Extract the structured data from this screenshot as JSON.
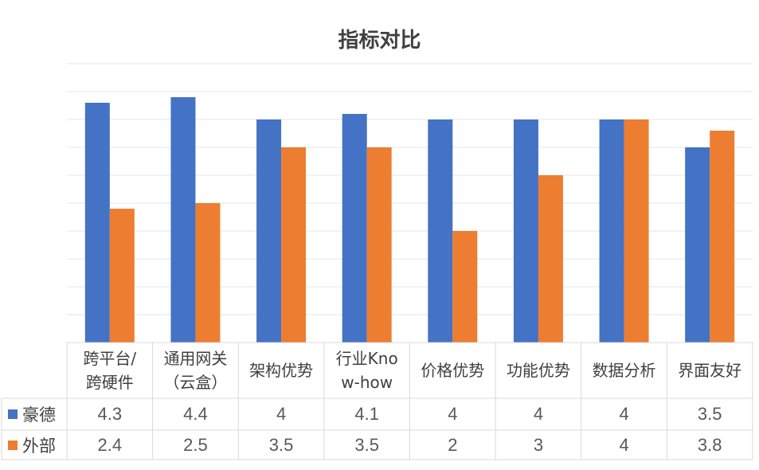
{
  "chart_data": {
    "type": "bar",
    "title": "指标对比",
    "categories": [
      "跨平台/跨硬件",
      "通用网关（云盒）",
      "架构优势",
      "行业Know-how",
      "价格优势",
      "功能优势",
      "数据分析",
      "界面友好"
    ],
    "category_lines": [
      [
        "跨平台/",
        "跨硬件"
      ],
      [
        "通用网关",
        "（云盒）"
      ],
      [
        "架构优势"
      ],
      [
        "行业Kno",
        "w-how"
      ],
      [
        "价格优势"
      ],
      [
        "功能优势"
      ],
      [
        "数据分析"
      ],
      [
        "界面友好"
      ]
    ],
    "series": [
      {
        "name": "豪德",
        "color": "#4472C4",
        "values": [
          4.3,
          4.4,
          4,
          4.1,
          4,
          4,
          4,
          3.5
        ],
        "labels": [
          "4.3",
          "4.4",
          "4",
          "4.1",
          "4",
          "4",
          "4",
          "3.5"
        ]
      },
      {
        "name": "外部",
        "color": "#ED7D31",
        "values": [
          2.4,
          2.5,
          3.5,
          3.5,
          2,
          3,
          4,
          3.8
        ],
        "labels": [
          "2.4",
          "2.5",
          "3.5",
          "3.5",
          "2",
          "3",
          "4",
          "3.8"
        ]
      }
    ],
    "ylim": [
      0,
      5
    ],
    "grid": true,
    "legend": "data-table"
  }
}
